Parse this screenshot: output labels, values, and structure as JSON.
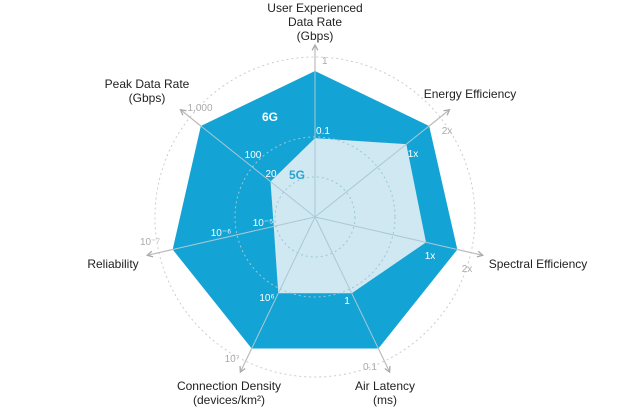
{
  "chart_data": {
    "type": "radar",
    "title": "",
    "axes": [
      {
        "label": [
          "User Experienced",
          "Data Rate",
          "(Gbps)"
        ],
        "val_5g": "0.1",
        "val_6g": "1",
        "level_5g": 0.54,
        "level_6g": 1.0
      },
      {
        "label": [
          "Energy Efficiency"
        ],
        "val_5g": "1x",
        "val_6g": "2x",
        "level_5g": 0.8,
        "level_6g": 1.0
      },
      {
        "label": [
          "Spectral Efficiency"
        ],
        "val_5g": "1x",
        "val_6g": "2x",
        "level_5g": 0.78,
        "level_6g": 1.0
      },
      {
        "label": [
          "Air Latency",
          "(ms)"
        ],
        "val_5g": "1",
        "val_6g": "0.1",
        "level_5g": 0.58,
        "level_6g": 1.0
      },
      {
        "label": [
          "Connection Density",
          "(devices/km²)"
        ],
        "val_5g": "10⁶",
        "val_6g": "10⁷",
        "level_5g": 0.58,
        "level_6g": 1.0
      },
      {
        "label": [
          "Reliability"
        ],
        "val_5g": "10⁻⁵",
        "val_6g": "10⁻⁷",
        "val_mid": "10⁻⁶",
        "level_5g": 0.29,
        "level_6g": 1.0
      },
      {
        "label": [
          "Peak Data Rate",
          "(Gbps)"
        ],
        "val_5g": "20",
        "val_6g": "1,000",
        "val_mid": "100",
        "level_5g": 0.39,
        "level_6g": 1.0
      }
    ],
    "series": [
      {
        "name": "6G",
        "color": "#13a3d4"
      },
      {
        "name": "5G",
        "color": "#cfe8f2"
      }
    ],
    "grid": true
  }
}
